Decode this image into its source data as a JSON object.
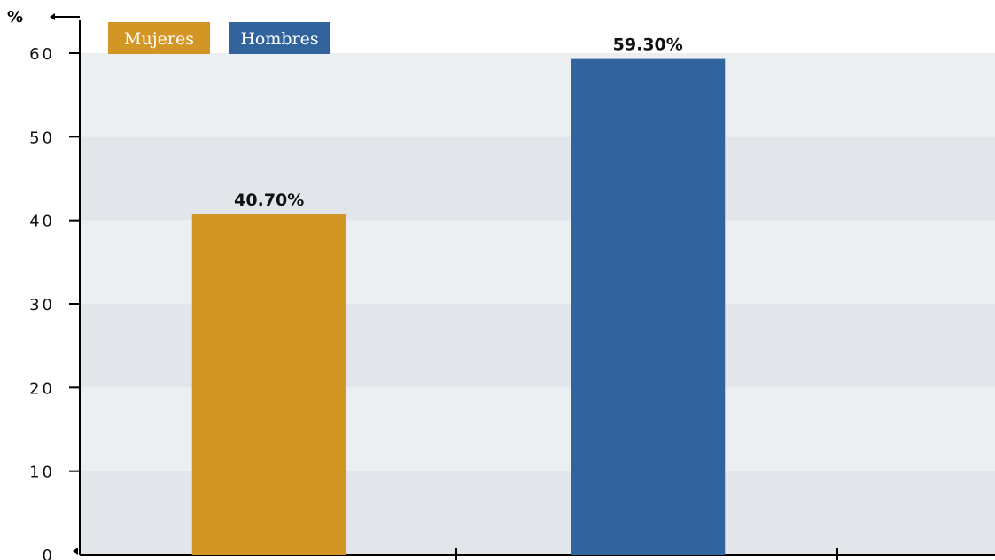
{
  "chart_data": {
    "type": "bar",
    "unit_label": "%",
    "categories": [
      "Mujeres",
      "Hombres"
    ],
    "values": [
      40.7,
      59.3
    ],
    "data_labels": [
      "40.70%",
      "59.30%"
    ],
    "colors": [
      "#d39523",
      "#31639c"
    ],
    "ylim": [
      0,
      60
    ],
    "yticks": [
      "0",
      "10",
      "20",
      "30",
      "40",
      "50",
      "60"
    ],
    "legend": [
      {
        "label": "Mujeres",
        "color": "#d39523"
      },
      {
        "label": "Hombres",
        "color": "#31639c"
      }
    ],
    "legend_position": "top-left",
    "grid": "alternating horizontal bands",
    "band_colors": [
      "#e2e6ea",
      "#ebeff2"
    ]
  }
}
